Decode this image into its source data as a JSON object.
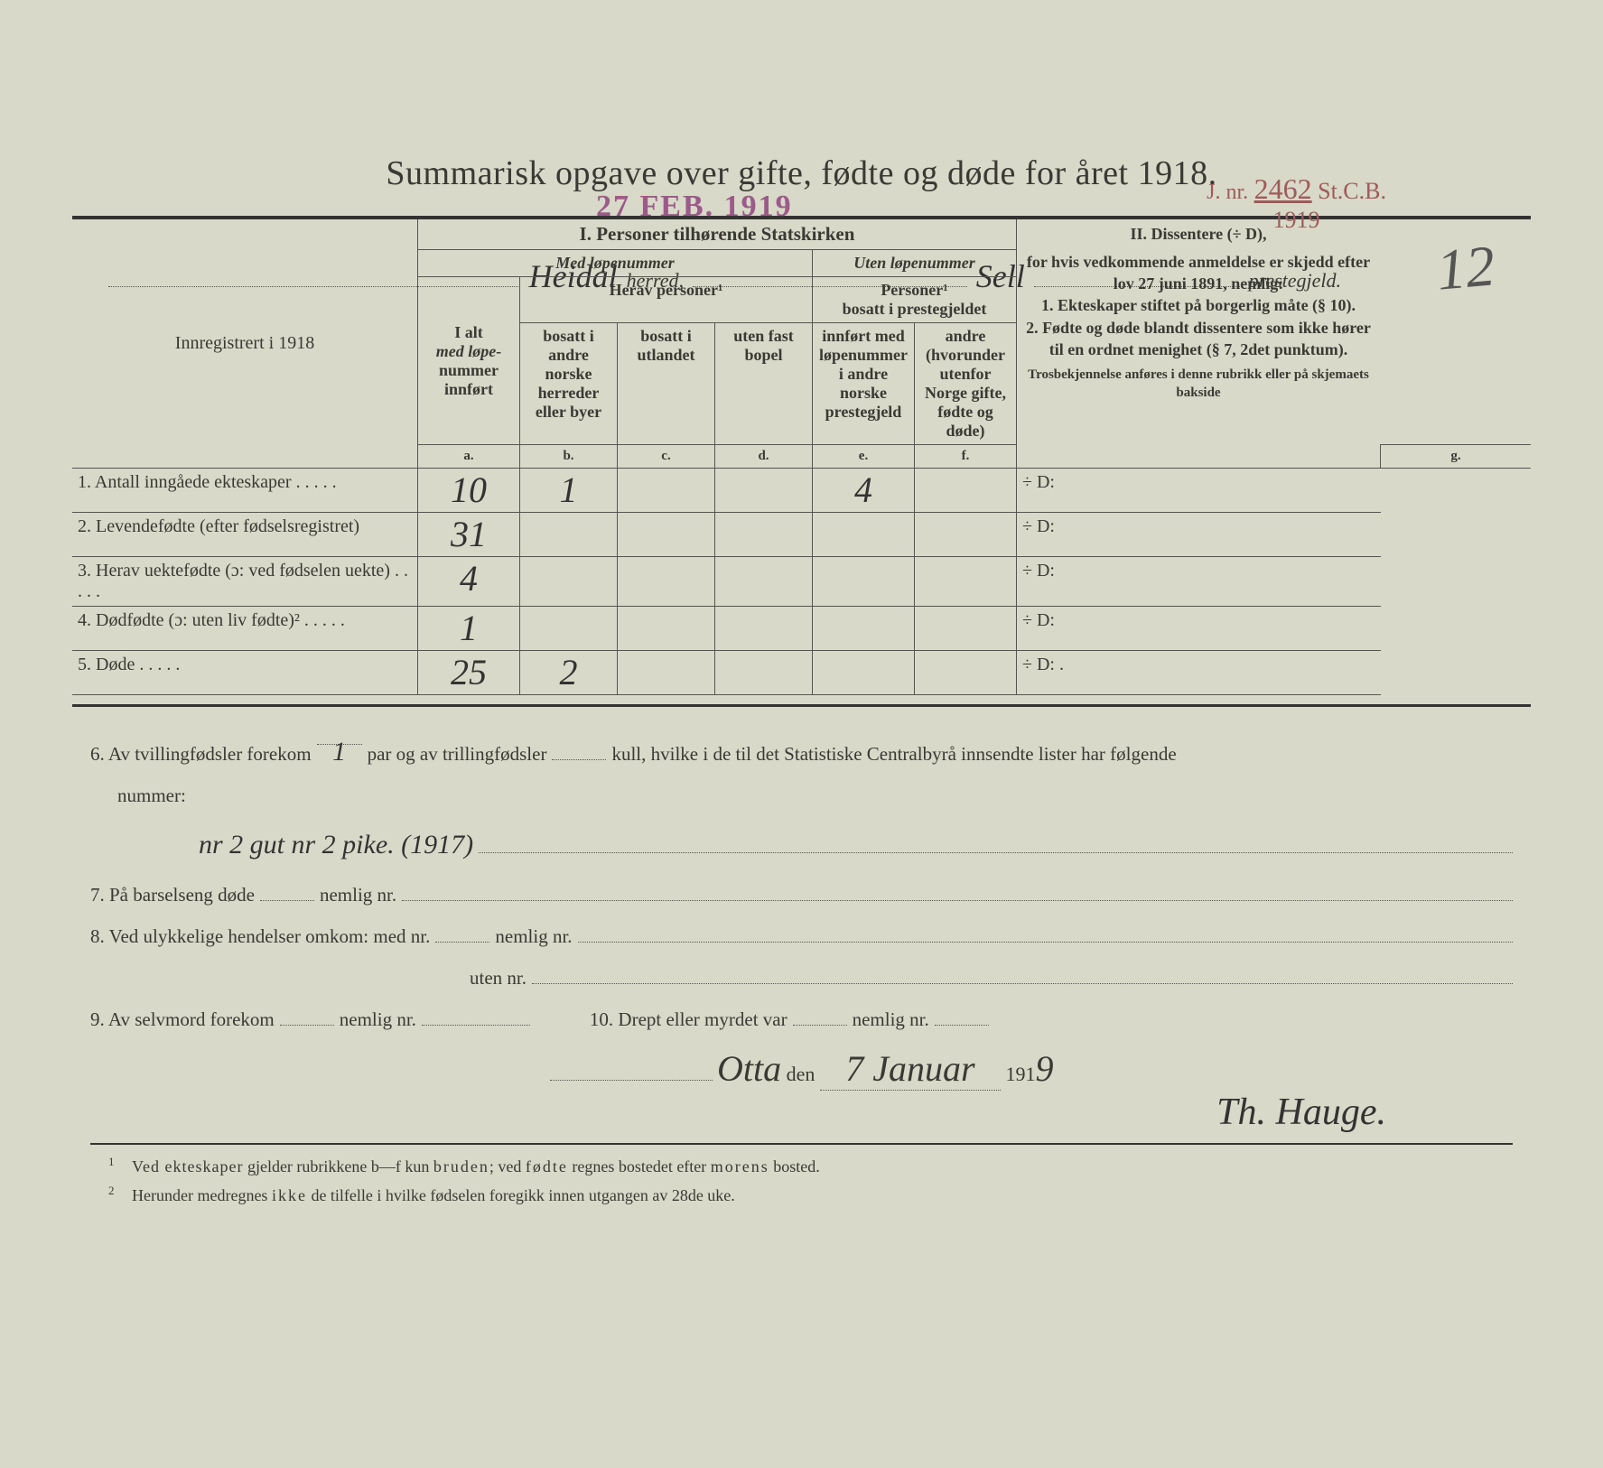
{
  "stamps": {
    "date": "27 FEB. 1919",
    "jnr_prefix": "J. nr.",
    "jnr_num": "2462",
    "jnr_suffix": "St.C.B.",
    "jnr_year": "1919"
  },
  "page_number": "12",
  "header": {
    "herred_hw": "Heidal",
    "herred_label": "herred,",
    "prestegjeld_hw": "Sell",
    "prestegjeld_label": "prestegjeld."
  },
  "title": "Summarisk opgave over gifte, fødte og døde for året 1918.",
  "table": {
    "reg_label": "Innregistrert i 1918",
    "sec1": "I.  Personer tilhørende Statskirken",
    "sec2_title": "II.  Dissentere (÷ D),",
    "med_lope": "Med løpenummer",
    "uten_lope": "Uten løpenummer",
    "ialt_1": "I alt",
    "ialt_2": "med løpe-",
    "ialt_3": "nummer",
    "ialt_4": "innført",
    "herav": "Herav personer¹",
    "pers_bosatt": "Personer¹\nbosatt i prestegjeldet",
    "col_b": "bosatt i andre norske herreder eller byer",
    "col_c": "bosatt i utlandet",
    "col_d": "uten fast bopel",
    "col_e": "innført med løpenummer i andre norske prestegjeld",
    "col_f": "andre (hvorunder utenfor Norge gifte, fødte og døde)",
    "letters": {
      "a": "a.",
      "b": "b.",
      "c": "c.",
      "d": "d.",
      "e": "e.",
      "f": "f.",
      "g": "g."
    },
    "diss_text_1": "for hvis vedkommende anmeldelse er skjedd efter lov 27 juni 1891, nemlig:",
    "diss_item_1": "1. Ekteskaper stiftet på borgerlig måte (§ 10).",
    "diss_item_2": "2. Fødte og døde blandt dissentere som ikke hører til en ordnet menighet (§ 7, 2det punktum).",
    "diss_note": "Trosbekjennelse anføres i denne rubrikk eller på skjemaets bakside",
    "rows": [
      {
        "n": "1.",
        "label": "Antall inngåede ekteskaper",
        "dots": true,
        "a": "10",
        "b": "1",
        "c": "",
        "d": "",
        "e": "4",
        "f": "",
        "g": "÷ D:"
      },
      {
        "n": "2.",
        "label": "Levendefødte (efter fødselsregistret)",
        "dots": false,
        "a": "31",
        "b": "",
        "c": "",
        "d": "",
        "e": "",
        "f": "",
        "g": "÷ D:"
      },
      {
        "n": "3.",
        "label": "Herav uektefødte (ɔ: ved fødselen uekte)",
        "dots": true,
        "a": "4",
        "b": "",
        "c": "",
        "d": "",
        "e": "",
        "f": "",
        "g": "÷ D:"
      },
      {
        "n": "4.",
        "label": "Dødfødte (ɔ: uten liv fødte)²",
        "dots": true,
        "a": "1",
        "b": "",
        "c": "",
        "d": "",
        "e": "",
        "f": "",
        "g": "÷ D:"
      },
      {
        "n": "5.",
        "label": "Døde",
        "dots": true,
        "a": "25",
        "b": "2",
        "c": "",
        "d": "",
        "e": "",
        "f": "",
        "g": "÷ D:  ."
      }
    ]
  },
  "lower": {
    "q6_a": "6.  Av tvillingfødsler forekom",
    "q6_hw1": "1",
    "q6_b": "par og av trillingfødsler",
    "q6_c": "kull, hvilke i de til det Statistiske Centralbyrå innsendte lister har følgende",
    "q6_d": "nummer:",
    "q6_hw2": "nr 2 gut nr 2 pike. (1917)",
    "q7": "7.  På barselseng døde",
    "nemlig": "nemlig nr.",
    "q8": "8.  Ved ulykkelige hendelser omkom:  med nr.",
    "q8b": "uten nr.",
    "q9": "9.  Av selvmord forekom",
    "q10": "10.  Drept eller myrdet var",
    "place_hw": "Otta",
    "den": "den",
    "date_hw": "7 Januar",
    "year_prefix": "191",
    "year_hw": "9",
    "signature": "Th. Hauge."
  },
  "footnotes": {
    "f1": "Ved ekteskaper gjelder rubrikkene b—f kun bruden; ved fødte regnes bostedet efter morens bosted.",
    "f2": "Herunder medregnes ikke de tilfelle i hvilke fødselen foregikk innen utgangen av 28de uke."
  }
}
